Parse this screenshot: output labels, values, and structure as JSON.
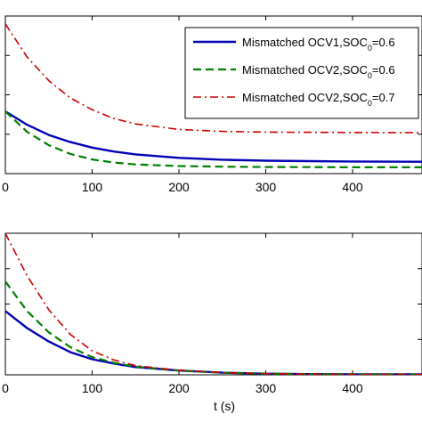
{
  "chart_data": [
    {
      "type": "line",
      "title": "",
      "xlabel": "",
      "ylabel": "",
      "xlim": [
        0,
        480
      ],
      "ylim": [
        0,
        1
      ],
      "x_ticks": [
        0,
        100,
        200,
        300,
        400
      ],
      "x_tick_labels": [
        "0",
        "100",
        "200",
        "300",
        "400"
      ],
      "grid": false,
      "legend": "top-right",
      "series": [
        {
          "name": "Mismatched OCV1,SOC0=0.6",
          "legend_parts": [
            "Mismatched OCV1,SOC",
            "0",
            "=0.6"
          ],
          "color": "#0000b4",
          "dash": "solid",
          "x": [
            0,
            25,
            50,
            75,
            100,
            125,
            150,
            200,
            250,
            300,
            350,
            400,
            480
          ],
          "y": [
            0.395,
            0.31,
            0.245,
            0.2,
            0.165,
            0.14,
            0.122,
            0.1,
            0.088,
            0.082,
            0.079,
            0.077,
            0.075
          ]
        },
        {
          "name": "Mismatched OCV2,SOC0=0.6",
          "legend_parts": [
            "Mismatched OCV2,SOC",
            "0",
            "=0.6"
          ],
          "color": "#007f00",
          "dash": "dashed",
          "x": [
            0,
            25,
            50,
            75,
            100,
            125,
            150,
            200,
            250,
            300,
            350,
            400,
            480
          ],
          "y": [
            0.395,
            0.265,
            0.18,
            0.125,
            0.09,
            0.07,
            0.058,
            0.048,
            0.044,
            0.042,
            0.041,
            0.04,
            0.04
          ]
        },
        {
          "name": "Mismatched OCV2,SOC0=0.7",
          "legend_parts": [
            "Mismatched OCV2,SOC",
            "0",
            "=0.7"
          ],
          "color": "#cc0000",
          "dash": "dashdot",
          "x": [
            0,
            25,
            50,
            75,
            100,
            125,
            150,
            200,
            250,
            300,
            350,
            400,
            480
          ],
          "y": [
            0.95,
            0.74,
            0.59,
            0.48,
            0.405,
            0.35,
            0.315,
            0.28,
            0.268,
            0.263,
            0.262,
            0.261,
            0.26
          ]
        }
      ]
    },
    {
      "type": "line",
      "title": "",
      "xlabel": "t (s)",
      "ylabel": "",
      "xlim": [
        0,
        480
      ],
      "ylim": [
        0,
        1
      ],
      "x_ticks": [
        0,
        100,
        200,
        300,
        400
      ],
      "x_tick_labels": [
        "0",
        "100",
        "200",
        "300",
        "400"
      ],
      "grid": false,
      "series": [
        {
          "color": "#0000b4",
          "dash": "solid",
          "x": [
            0,
            25,
            50,
            75,
            100,
            125,
            150,
            200,
            250,
            300,
            350,
            400,
            480
          ],
          "y": [
            0.45,
            0.33,
            0.235,
            0.16,
            0.11,
            0.08,
            0.055,
            0.03,
            0.015,
            0.008,
            0.005,
            0.004,
            0.003
          ]
        },
        {
          "color": "#007f00",
          "dash": "dashed",
          "x": [
            0,
            25,
            50,
            75,
            100,
            125,
            150,
            200,
            250,
            300,
            350,
            400,
            480
          ],
          "y": [
            0.66,
            0.45,
            0.3,
            0.195,
            0.125,
            0.085,
            0.058,
            0.03,
            0.015,
            0.008,
            0.005,
            0.004,
            0.003
          ]
        },
        {
          "color": "#cc0000",
          "dash": "dashdot",
          "x": [
            0,
            25,
            50,
            75,
            100,
            125,
            150,
            200,
            250,
            300,
            350,
            400,
            480
          ],
          "y": [
            1.0,
            0.7,
            0.46,
            0.285,
            0.17,
            0.105,
            0.065,
            0.032,
            0.016,
            0.008,
            0.005,
            0.004,
            0.003
          ]
        }
      ]
    }
  ]
}
